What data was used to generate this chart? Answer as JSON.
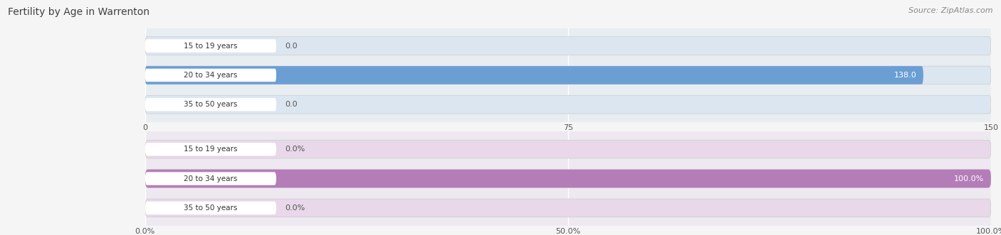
{
  "title": "Fertility by Age in Warrenton",
  "source": "Source: ZipAtlas.com",
  "top_chart": {
    "categories": [
      "15 to 19 years",
      "20 to 34 years",
      "35 to 50 years"
    ],
    "values": [
      0.0,
      138.0,
      0.0
    ],
    "xlim": [
      0,
      150.0
    ],
    "xticks": [
      0.0,
      75.0,
      150.0
    ],
    "bar_color_full": "#6b9fd4",
    "bar_color_empty": "#dce6f0",
    "bar_bg_outer": "#e8edf2",
    "label_inside_color": "#ffffff",
    "label_outside_color": "#555555",
    "label_pill_bg": "#ffffff",
    "label_pill_text": "#444444"
  },
  "bottom_chart": {
    "categories": [
      "15 to 19 years",
      "20 to 34 years",
      "35 to 50 years"
    ],
    "values": [
      0.0,
      100.0,
      0.0
    ],
    "xlim": [
      0,
      100.0
    ],
    "xticks": [
      0.0,
      50.0,
      100.0
    ],
    "xtick_labels": [
      "0.0%",
      "50.0%",
      "100.0%"
    ],
    "bar_color_full": "#b57db8",
    "bar_color_empty": "#e8d8ea",
    "bar_bg_outer": "#eee8f0",
    "label_inside_color": "#ffffff",
    "label_outside_color": "#555555",
    "label_pill_bg": "#ffffff",
    "label_pill_text": "#444444"
  },
  "fig_bg_color": "#f5f5f5",
  "title_color": "#404040",
  "source_color": "#888888",
  "fig_width": 14.06,
  "fig_height": 3.31
}
